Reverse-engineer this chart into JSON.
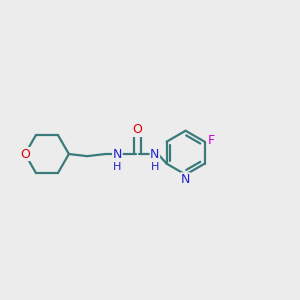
{
  "bg_color": "#ececec",
  "bond_color": "#3a7a7a",
  "O_color": "#dd0000",
  "N_color": "#2222cc",
  "F_color": "#cc00cc",
  "lw": 1.6,
  "figsize": [
    3.0,
    3.0
  ],
  "dpi": 100,
  "xlim": [
    -0.05,
    1.05
  ],
  "ylim": [
    0.25,
    0.85
  ]
}
